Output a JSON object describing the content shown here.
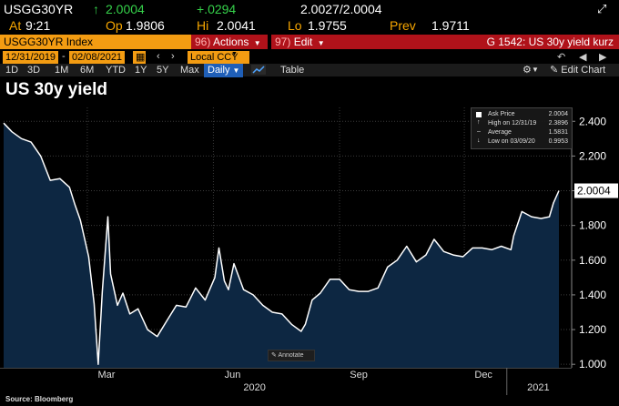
{
  "header": {
    "ticker": "USGG30YR",
    "last_arrow": "↑",
    "last": "2.0004",
    "change": "+.0294",
    "bid_ask": "2.0027/2.0004",
    "at_label": "At",
    "time": "9:21",
    "op_label": "Op",
    "open": "1.9806",
    "hi_label": "Hi",
    "high": "2.0041",
    "lo_label": "Lo",
    "low": "1.9755",
    "prev_label": "Prev",
    "prev": "1.9711",
    "expand_icon": "expand-icon"
  },
  "commandbar": {
    "security": "USGG30YR Index",
    "actions_num": "96)",
    "actions": "Actions",
    "edit_num": "97)",
    "edit": "Edit",
    "chart_id": "G 1542: US 30y yield kurz"
  },
  "range": {
    "start": "12/31/2019",
    "end": "02/08/2021",
    "ccy": "Local CCY"
  },
  "toolbar": {
    "periods": [
      "1D",
      "3D",
      "1M",
      "6M",
      "YTD",
      "1Y",
      "5Y",
      "Max"
    ],
    "frequency": "Daily",
    "table": "Table",
    "edit_chart": "Edit Chart"
  },
  "chart_title": "US 30y yield",
  "annotate": "Annotate",
  "source": "Source: Bloomberg",
  "legend": {
    "ask_label": "Ask Price",
    "ask_value": "2.0004",
    "high_label": "High on 12/31/19",
    "high_value": "2.3896",
    "avg_label": "Average",
    "avg_value": "1.5831",
    "low_label": "Low on 03/09/20",
    "low_value": "0.9953"
  },
  "colors": {
    "line": "#ffffff",
    "area": "#0d2742",
    "accent_orange": "#f39c12",
    "accent_red": "#b0121a",
    "up_green": "#35d14a"
  },
  "chart_data": {
    "type": "area",
    "title": "US 30y yield",
    "ylim": [
      0.98,
      2.48
    ],
    "yticks": [
      "1.000",
      "1.200",
      "1.400",
      "1.600",
      "1.800",
      "2.000",
      "2.200",
      "2.400"
    ],
    "xticks": [
      "Mar",
      "Jun",
      "Sep",
      "Dec"
    ],
    "year_labels": [
      "2020",
      "2021"
    ],
    "last_value_label": "2.0004",
    "grid": true,
    "x_start": "2019-12-31",
    "x_end": "2021-02-08",
    "series": [
      {
        "x": [
          "2019-12-31",
          "2020-01-06",
          "2020-01-13",
          "2020-01-20",
          "2020-01-27",
          "2020-02-03",
          "2020-02-10",
          "2020-02-17",
          "2020-02-21",
          "2020-02-25",
          "2020-03-02",
          "2020-03-06",
          "2020-03-09",
          "2020-03-12",
          "2020-03-16",
          "2020-03-18",
          "2020-03-23",
          "2020-03-27",
          "2020-04-01",
          "2020-04-07",
          "2020-04-14",
          "2020-04-21",
          "2020-04-28",
          "2020-05-05",
          "2020-05-12",
          "2020-05-19",
          "2020-05-26",
          "2020-06-02",
          "2020-06-05",
          "2020-06-09",
          "2020-06-12",
          "2020-06-16",
          "2020-06-23",
          "2020-06-30",
          "2020-07-07",
          "2020-07-14",
          "2020-07-21",
          "2020-07-28",
          "2020-08-04",
          "2020-08-07",
          "2020-08-12",
          "2020-08-18",
          "2020-08-25",
          "2020-09-01",
          "2020-09-08",
          "2020-09-15",
          "2020-09-22",
          "2020-09-29",
          "2020-10-06",
          "2020-10-13",
          "2020-10-20",
          "2020-10-27",
          "2020-11-03",
          "2020-11-09",
          "2020-11-16",
          "2020-11-23",
          "2020-11-30",
          "2020-12-07",
          "2020-12-14",
          "2020-12-21",
          "2020-12-28",
          "2021-01-04",
          "2021-01-06",
          "2021-01-12",
          "2021-01-19",
          "2021-01-26",
          "2021-02-01",
          "2021-02-04",
          "2021-02-08"
        ],
        "values": [
          2.39,
          2.34,
          2.3,
          2.28,
          2.2,
          2.06,
          2.07,
          2.02,
          1.92,
          1.83,
          1.62,
          1.35,
          1.0,
          1.42,
          1.85,
          1.52,
          1.34,
          1.41,
          1.29,
          1.32,
          1.2,
          1.16,
          1.25,
          1.34,
          1.33,
          1.44,
          1.37,
          1.5,
          1.67,
          1.48,
          1.43,
          1.58,
          1.43,
          1.4,
          1.34,
          1.3,
          1.29,
          1.23,
          1.19,
          1.23,
          1.37,
          1.41,
          1.49,
          1.49,
          1.43,
          1.42,
          1.42,
          1.44,
          1.56,
          1.6,
          1.68,
          1.59,
          1.63,
          1.72,
          1.65,
          1.63,
          1.62,
          1.67,
          1.67,
          1.66,
          1.68,
          1.66,
          1.74,
          1.88,
          1.85,
          1.84,
          1.85,
          1.93,
          2.0
        ]
      }
    ]
  }
}
